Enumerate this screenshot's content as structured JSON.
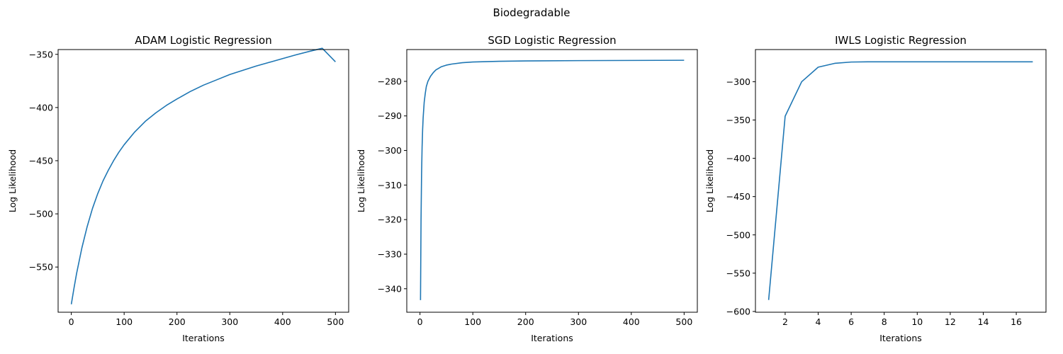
{
  "suptitle": "Biodegradable",
  "chart_data": [
    {
      "type": "line",
      "title": "ADAM Logistic Regression",
      "xlabel": "Iterations",
      "ylabel": "Log Likelihood",
      "xlim": [
        -25,
        525
      ],
      "ylim": [
        -592.5,
        -345.5
      ],
      "xticks": [
        0,
        100,
        200,
        300,
        400,
        500
      ],
      "yticks": [
        -550,
        -500,
        -450,
        -400,
        -350
      ],
      "grid": false,
      "color": "#1f77b4",
      "series": [
        {
          "x": [
            0,
            5,
            10,
            20,
            30,
            40,
            50,
            60,
            70,
            80,
            90,
            100,
            120,
            140,
            160,
            180,
            200,
            225,
            250,
            275,
            300,
            325,
            350,
            375,
            400,
            425,
            450,
            475,
            500
          ],
          "values": [
            -585,
            -570,
            -556,
            -532,
            -512,
            -495,
            -481,
            -469,
            -459,
            -450,
            -442,
            -435,
            -423,
            -413,
            -405,
            -398,
            -392,
            -385,
            -379,
            -374,
            -369,
            -365,
            -361,
            -357.5,
            -354,
            -350.5,
            -347.3,
            -344.3,
            -357
          ]
        }
      ]
    },
    {
      "type": "line",
      "title": "SGD Logistic Regression",
      "xlabel": "Iterations",
      "ylabel": "Log Likelihood",
      "xlim": [
        -25,
        525
      ],
      "ylim": [
        -346.8,
        -270.8
      ],
      "xticks": [
        0,
        100,
        200,
        300,
        400,
        500
      ],
      "yticks": [
        -340,
        -330,
        -320,
        -310,
        -300,
        -290,
        -280
      ],
      "grid": false,
      "color": "#1f77b4",
      "series": [
        {
          "x": [
            1,
            2,
            3,
            4,
            5,
            6,
            8,
            10,
            12,
            15,
            20,
            25,
            30,
            40,
            50,
            60,
            80,
            100,
            150,
            200,
            300,
            400,
            500
          ],
          "values": [
            -343.3,
            -320,
            -307,
            -299,
            -294,
            -290.5,
            -286,
            -283.5,
            -281.5,
            -280,
            -278.5,
            -277.5,
            -276.7,
            -275.8,
            -275.3,
            -275,
            -274.6,
            -274.4,
            -274.2,
            -274.1,
            -274,
            -273.95,
            -273.9
          ]
        }
      ]
    },
    {
      "type": "line",
      "title": "IWLS Logistic Regression",
      "xlabel": "Iterations",
      "ylabel": "Log Likelihood",
      "xlim": [
        0.2,
        17.8
      ],
      "ylim": [
        -601,
        -258
      ],
      "xticks": [
        2,
        4,
        6,
        8,
        10,
        12,
        14,
        16
      ],
      "yticks": [
        -600,
        -550,
        -500,
        -450,
        -400,
        -350,
        -300
      ],
      "grid": false,
      "color": "#1f77b4",
      "series": [
        {
          "x": [
            1,
            2,
            3,
            4,
            5,
            6,
            7,
            8,
            9,
            10,
            11,
            12,
            13,
            14,
            15,
            16,
            17
          ],
          "values": [
            -585,
            -345,
            -300,
            -281,
            -276,
            -274.3,
            -274,
            -274,
            -274,
            -274,
            -274,
            -274,
            -274,
            -274,
            -274,
            -274,
            -274
          ]
        }
      ]
    }
  ]
}
